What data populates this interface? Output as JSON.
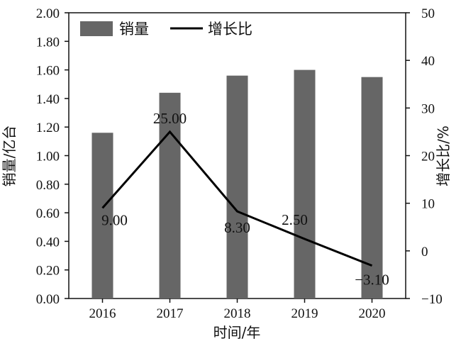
{
  "chart_data": {
    "type": "bar",
    "categories": [
      "2016",
      "2017",
      "2018",
      "2019",
      "2020"
    ],
    "series": [
      {
        "name": "销量",
        "type": "bar",
        "axis": "left",
        "color": "#666666",
        "values": [
          1.16,
          1.44,
          1.56,
          1.6,
          1.55
        ]
      },
      {
        "name": "增长比",
        "type": "line",
        "axis": "right",
        "color": "#000000",
        "values": [
          9.0,
          25.0,
          8.3,
          2.5,
          -3.1
        ],
        "labels": [
          "9.00",
          "25.00",
          "8.30",
          "2.50",
          "−3.10"
        ]
      }
    ],
    "xlabel": "时间/年",
    "ylabel_left": "销量/亿台",
    "ylabel_right": "增长比/%",
    "ylim_left": [
      0,
      2.0
    ],
    "ylim_right": [
      -10,
      50
    ],
    "yticks_left": [
      "0.00",
      "0.20",
      "0.40",
      "0.60",
      "0.80",
      "1.00",
      "1.20",
      "1.40",
      "1.60",
      "1.80",
      "2.00"
    ],
    "yticks_right": [
      "−10",
      "0",
      "10",
      "20",
      "30",
      "40",
      "50"
    ],
    "legend_position": "top-left",
    "grid": false
  }
}
